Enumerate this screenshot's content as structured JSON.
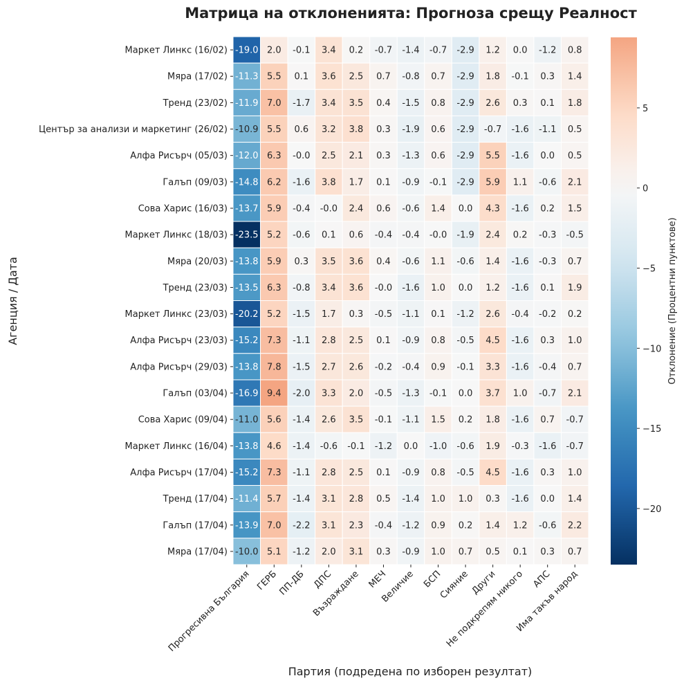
{
  "chart_data": {
    "type": "heatmap",
    "title": "Матрица на отклоненията: Прогноза срещу Реалност",
    "xlabel": "Партия (подредена по изборен резултат)",
    "ylabel": "Агенция / Дата",
    "colorbar_label": "Отклонение (Процентни пунктове)",
    "colormap": "RdBu_r",
    "center": 0,
    "vmin": -23.5,
    "vmax": 9.4,
    "colorbar_ticks": [
      5,
      0,
      -5,
      -10,
      -15,
      -20
    ],
    "colorbar_tick_labels": [
      "5",
      "0",
      "−5",
      "−10",
      "−15",
      "−20"
    ],
    "columns": [
      "Прогресивна България",
      "ГЕРБ",
      "ПП-ДБ",
      "ДПС",
      "Възраждане",
      "МЕЧ",
      "Величие",
      "БСП",
      "Сияние",
      "Други",
      "Не подкрепям никого",
      "АПС",
      "Има такъв народ"
    ],
    "rows": [
      "Маркет Линкс (16/02)",
      "Мяра (17/02)",
      "Тренд (23/02)",
      "Център за анализи и маркетинг (26/02)",
      "Алфа Рисърч (05/03)",
      "Галъп (09/03)",
      "Сова Харис (16/03)",
      "Маркет Линкс (18/03)",
      "Мяра (20/03)",
      "Тренд (23/03)",
      "Маркет Линкс (23/03)",
      "Алфа Рисърч (23/03)",
      "Алфа Рисърч (29/03)",
      "Галъп (03/04)",
      "Сова Харис (09/04)",
      "Маркет Линкс (16/04)",
      "Алфа Рисърч (17/04)",
      "Тренд (17/04)",
      "Галъп (17/04)",
      "Мяра (17/04)"
    ],
    "values": [
      [
        "-19.0",
        "2.0",
        "-0.1",
        "3.4",
        "0.2",
        "-0.7",
        "-1.4",
        "-0.7",
        "-2.9",
        "1.2",
        "0.0",
        "-1.2",
        "0.8"
      ],
      [
        "-11.3",
        "5.5",
        "0.1",
        "3.6",
        "2.5",
        "0.7",
        "-0.8",
        "0.7",
        "-2.9",
        "1.8",
        "-0.1",
        "0.3",
        "1.4"
      ],
      [
        "-11.9",
        "7.0",
        "-1.7",
        "3.4",
        "3.5",
        "0.4",
        "-1.5",
        "0.8",
        "-2.9",
        "2.6",
        "0.3",
        "0.1",
        "1.8"
      ],
      [
        "-10.9",
        "5.5",
        "0.6",
        "3.2",
        "3.8",
        "0.3",
        "-1.9",
        "0.6",
        "-2.9",
        "-0.7",
        "-1.6",
        "-1.1",
        "0.5"
      ],
      [
        "-12.0",
        "6.3",
        "-0.0",
        "2.5",
        "2.1",
        "0.3",
        "-1.3",
        "0.6",
        "-2.9",
        "5.5",
        "-1.6",
        "0.0",
        "0.5"
      ],
      [
        "-14.8",
        "6.2",
        "-1.6",
        "3.8",
        "1.7",
        "0.1",
        "-0.9",
        "-0.1",
        "-2.9",
        "5.9",
        "1.1",
        "-0.6",
        "2.1"
      ],
      [
        "-13.7",
        "5.9",
        "-0.4",
        "-0.0",
        "2.4",
        "0.6",
        "-0.6",
        "1.4",
        "0.0",
        "4.3",
        "-1.6",
        "0.2",
        "1.5"
      ],
      [
        "-23.5",
        "5.2",
        "-0.6",
        "0.1",
        "0.6",
        "-0.4",
        "-0.4",
        "-0.0",
        "-1.9",
        "2.4",
        "0.2",
        "-0.3",
        "-0.5"
      ],
      [
        "-13.8",
        "5.9",
        "0.3",
        "3.5",
        "3.6",
        "0.4",
        "-0.6",
        "1.1",
        "-0.6",
        "1.4",
        "-1.6",
        "-0.3",
        "0.7"
      ],
      [
        "-13.5",
        "6.3",
        "-0.8",
        "3.4",
        "3.6",
        "-0.0",
        "-1.6",
        "1.0",
        "0.0",
        "1.2",
        "-1.6",
        "0.1",
        "1.9"
      ],
      [
        "-20.2",
        "5.2",
        "-1.5",
        "1.7",
        "0.3",
        "-0.5",
        "-1.1",
        "0.1",
        "-1.2",
        "2.6",
        "-0.4",
        "-0.2",
        "0.2"
      ],
      [
        "-15.2",
        "7.3",
        "-1.1",
        "2.8",
        "2.5",
        "0.1",
        "-0.9",
        "0.8",
        "-0.5",
        "4.5",
        "-1.6",
        "0.3",
        "1.0"
      ],
      [
        "-13.8",
        "7.8",
        "-1.5",
        "2.7",
        "2.6",
        "-0.2",
        "-0.4",
        "0.9",
        "-0.1",
        "3.3",
        "-1.6",
        "-0.4",
        "0.7"
      ],
      [
        "-16.9",
        "9.4",
        "-2.0",
        "3.3",
        "2.0",
        "-0.5",
        "-1.3",
        "-0.1",
        "0.0",
        "3.7",
        "1.0",
        "-0.7",
        "2.1"
      ],
      [
        "-11.0",
        "5.6",
        "-1.4",
        "2.6",
        "3.5",
        "-0.1",
        "-1.1",
        "1.5",
        "0.2",
        "1.8",
        "-1.6",
        "0.7",
        "-0.7"
      ],
      [
        "-13.8",
        "4.6",
        "-1.4",
        "-0.6",
        "-0.1",
        "-1.2",
        "0.0",
        "-1.0",
        "-0.6",
        "1.9",
        "-0.3",
        "-1.6",
        "-0.7"
      ],
      [
        "-15.2",
        "7.3",
        "-1.1",
        "2.8",
        "2.5",
        "0.1",
        "-0.9",
        "0.8",
        "-0.5",
        "4.5",
        "-1.6",
        "0.3",
        "1.0"
      ],
      [
        "-11.4",
        "5.7",
        "-1.4",
        "3.1",
        "2.8",
        "0.5",
        "-1.4",
        "1.0",
        "1.0",
        "0.3",
        "-1.6",
        "0.0",
        "1.4"
      ],
      [
        "-13.9",
        "7.0",
        "-2.2",
        "3.1",
        "2.3",
        "-0.4",
        "-1.2",
        "0.9",
        "0.2",
        "1.4",
        "1.2",
        "-0.6",
        "2.2"
      ],
      [
        "-10.0",
        "5.1",
        "-1.2",
        "2.0",
        "3.1",
        "0.3",
        "-0.9",
        "1.0",
        "0.7",
        "0.5",
        "0.1",
        "0.3",
        "0.7"
      ]
    ],
    "grid": false,
    "legend": "colorbar-right"
  }
}
